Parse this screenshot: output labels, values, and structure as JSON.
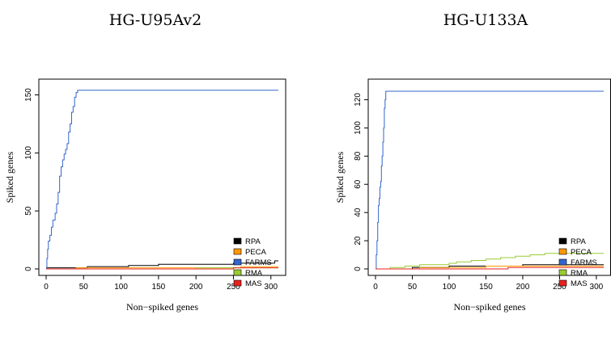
{
  "chart_data": [
    {
      "type": "line",
      "title": "HG-U95Av2",
      "xlabel": "Non−spiked genes",
      "ylabel": "Spiked genes",
      "xlim": [
        0,
        310
      ],
      "ylim": [
        0,
        158
      ],
      "xticks": [
        "0",
        "50",
        "100",
        "150",
        "200",
        "250",
        "300"
      ],
      "yticks": [
        "0",
        "50",
        "100",
        "150"
      ],
      "legend": "bottom-right",
      "grid": false,
      "series": [
        {
          "name": "RPA",
          "color": "#000000",
          "x": [
            0,
            5,
            18,
            35,
            55,
            90,
            110,
            150,
            200,
            250,
            290,
            305,
            310
          ],
          "y": [
            1,
            1,
            1,
            1,
            2,
            2,
            3,
            4,
            4,
            5,
            5,
            7,
            7
          ]
        },
        {
          "name": "PECA",
          "color": "#ff9900",
          "x": [
            0,
            20,
            40,
            80,
            150,
            200,
            260,
            310
          ],
          "y": [
            0,
            0,
            1,
            1,
            1,
            1,
            2,
            2
          ]
        },
        {
          "name": "FARMS",
          "color": "#3366cc",
          "x": [
            0,
            1,
            2,
            3,
            5,
            7,
            9,
            12,
            14,
            16,
            18,
            20,
            22,
            24,
            26,
            28,
            30,
            32,
            34,
            36,
            38,
            40,
            42,
            310
          ],
          "y": [
            0,
            9,
            17,
            24,
            29,
            36,
            42,
            48,
            56,
            66,
            80,
            88,
            94,
            99,
            103,
            108,
            118,
            125,
            135,
            140,
            148,
            152,
            154,
            154
          ]
        },
        {
          "name": "RMA",
          "color": "#99cc33",
          "x": [
            0,
            60,
            120,
            200,
            260,
            310
          ],
          "y": [
            0,
            0,
            0,
            1,
            1,
            1
          ]
        },
        {
          "name": "MAS",
          "color": "#e8211e",
          "x": [
            0,
            150,
            250,
            310
          ],
          "y": [
            0,
            0,
            1,
            1
          ]
        }
      ]
    },
    {
      "type": "line",
      "title": "HG-U133A",
      "xlabel": "Non−spiked genes",
      "ylabel": "Spiked genes",
      "xlim": [
        0,
        310
      ],
      "ylim": [
        0,
        130
      ],
      "xticks": [
        "0",
        "50",
        "100",
        "150",
        "200",
        "250",
        "300"
      ],
      "yticks": [
        "0",
        "20",
        "40",
        "60",
        "80",
        "100",
        "120"
      ],
      "legend": "bottom-right",
      "grid": false,
      "series": [
        {
          "name": "RPA",
          "color": "#000000",
          "x": [
            0,
            20,
            50,
            60,
            100,
            130,
            200,
            260,
            310
          ],
          "y": [
            0,
            0,
            1,
            1,
            2,
            2,
            3,
            3,
            3
          ]
        },
        {
          "name": "PECA",
          "color": "#ff9900",
          "x": [
            0,
            30,
            60,
            100,
            150,
            200,
            250,
            310
          ],
          "y": [
            0,
            0,
            1,
            1,
            2,
            2,
            2,
            2
          ]
        },
        {
          "name": "FARMS",
          "color": "#3366cc",
          "x": [
            0,
            1,
            2,
            3,
            4,
            5,
            6,
            7,
            8,
            9,
            10,
            11,
            12,
            13,
            14,
            310
          ],
          "y": [
            0,
            10,
            20,
            33,
            45,
            50,
            58,
            62,
            73,
            80,
            90,
            100,
            114,
            120,
            126,
            126
          ]
        },
        {
          "name": "RMA",
          "color": "#99cc33",
          "x": [
            0,
            20,
            40,
            60,
            80,
            100,
            110,
            130,
            150,
            170,
            190,
            210,
            230,
            250,
            310
          ],
          "y": [
            0,
            1,
            2,
            3,
            3,
            4,
            5,
            6,
            7,
            8,
            9,
            10,
            11,
            11,
            11
          ]
        },
        {
          "name": "MAS",
          "color": "#e8211e",
          "x": [
            0,
            50,
            120,
            180,
            250,
            310
          ],
          "y": [
            0,
            0,
            0,
            1,
            1,
            1
          ]
        }
      ]
    }
  ]
}
